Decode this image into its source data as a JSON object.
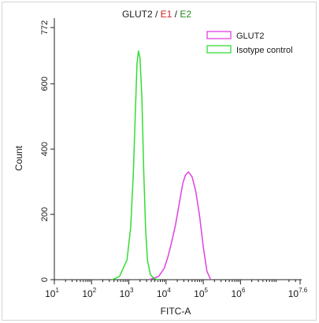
{
  "chart_data": {
    "type": "line",
    "title_parts": [
      {
        "text": "GLUT2",
        "color": "#1a1a1a"
      },
      {
        "text": " / ",
        "color": "#1a1a1a"
      },
      {
        "text": "E1",
        "color": "#d21f1f"
      },
      {
        "text": " / ",
        "color": "#1a1a1a"
      },
      {
        "text": "E2",
        "color": "#1f8a1f"
      }
    ],
    "xlabel": "FITC-A",
    "ylabel": "Count",
    "x_scale": "log",
    "xlim_log10": [
      1,
      7.6
    ],
    "ylim": [
      0,
      772
    ],
    "x_ticks": [
      {
        "log": 1,
        "base": "10",
        "exp": "1"
      },
      {
        "log": 2,
        "base": "10",
        "exp": "2"
      },
      {
        "log": 3,
        "base": "10",
        "exp": "3"
      },
      {
        "log": 4,
        "base": "10",
        "exp": "4"
      },
      {
        "log": 5,
        "base": "10",
        "exp": "5"
      },
      {
        "log": 6,
        "base": "10",
        "exp": "6"
      },
      {
        "log": 7.6,
        "base": "10",
        "exp": "7.6"
      }
    ],
    "y_ticks": [
      0,
      200,
      400,
      600,
      772
    ],
    "legend_position": "top-right",
    "series": [
      {
        "name": "GLUT2",
        "color": "#e040e0",
        "x_log10": [
          3.55,
          3.8,
          3.95,
          4.05,
          4.15,
          4.25,
          4.32,
          4.38,
          4.45,
          4.52,
          4.6,
          4.7,
          4.8,
          4.9,
          5.0,
          5.1,
          5.2
        ],
        "y": [
          0,
          10,
          35,
          70,
          115,
          165,
          210,
          250,
          295,
          320,
          330,
          315,
          270,
          195,
          100,
          25,
          0
        ]
      },
      {
        "name": "Isotype control",
        "color": "#33dd33",
        "x_log10": [
          2.55,
          2.75,
          2.95,
          3.05,
          3.12,
          3.18,
          3.22,
          3.26,
          3.3,
          3.35,
          3.4,
          3.45,
          3.5,
          3.58,
          3.68,
          3.8
        ],
        "y": [
          0,
          10,
          60,
          160,
          320,
          530,
          660,
          700,
          680,
          560,
          330,
          160,
          60,
          15,
          3,
          0
        ]
      }
    ]
  }
}
